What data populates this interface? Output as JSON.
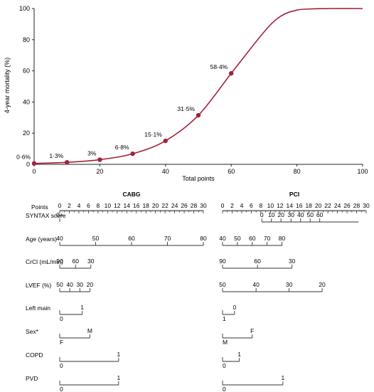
{
  "chart_data": {
    "type": "line",
    "xlabel": "Total points",
    "ylabel": "4-year mortality (%)",
    "xlim": [
      0,
      100
    ],
    "ylim": [
      0,
      100
    ],
    "x_ticks": [
      "0",
      "20",
      "40",
      "60",
      "80",
      "100"
    ],
    "y_ticks": [
      "0",
      "20",
      "40",
      "60",
      "80",
      "100"
    ],
    "series": [
      {
        "color": "#a3213a",
        "curve": {
          "x": [
            0,
            10,
            20,
            30,
            40,
            50,
            60,
            70,
            75,
            80,
            85,
            90,
            100
          ],
          "y": [
            0.6,
            1.3,
            3,
            6.8,
            15.1,
            31.5,
            58.4,
            85,
            95,
            99,
            99.8,
            100,
            100
          ]
        },
        "points": [
          {
            "x": 0,
            "y": 0.6,
            "label": "0·6%"
          },
          {
            "x": 10,
            "y": 1.3,
            "label": "1·3%"
          },
          {
            "x": 20,
            "y": 3,
            "label": "3%"
          },
          {
            "x": 30,
            "y": 6.8,
            "label": "6·8%"
          },
          {
            "x": 40,
            "y": 15.1,
            "label": "15·1%"
          },
          {
            "x": 50,
            "y": 31.5,
            "label": "31·5%"
          },
          {
            "x": 60,
            "y": 58.4,
            "label": "58·4%"
          }
        ]
      }
    ]
  },
  "nomogram": {
    "points_label": "Points",
    "groups": [
      {
        "title": "CABG",
        "ticks": [
          "0",
          "2",
          "4",
          "6",
          "8",
          "10",
          "12",
          "14",
          "16",
          "18",
          "20",
          "22",
          "24",
          "26",
          "28",
          "30"
        ]
      },
      {
        "title": "PCI",
        "ticks": [
          "0",
          "2",
          "4",
          "6",
          "8",
          "10",
          "12",
          "14",
          "16",
          "18",
          "20",
          "22",
          "24",
          "26",
          "28",
          "30"
        ]
      }
    ],
    "rows": [
      {
        "label": "SYNTAX score",
        "cabg": {
          "start": 0,
          "end": 0,
          "ticks": [
            {
              "p": 0,
              "t": "0+"
            }
          ]
        },
        "pci": {
          "start": 8.2,
          "end": 28.4,
          "ticks": [
            {
              "p": 8.2,
              "t": "0"
            },
            {
              "p": 10.2,
              "t": "10"
            },
            {
              "p": 12.2,
              "t": "20"
            },
            {
              "p": 14.3,
              "t": "30"
            },
            {
              "p": 16.3,
              "t": "40"
            },
            {
              "p": 18.3,
              "t": "50"
            },
            {
              "p": 20.3,
              "t": "60"
            }
          ]
        }
      },
      {
        "label": "Age (years)",
        "cabg": {
          "start": 0,
          "end": 30,
          "ticks": [
            {
              "p": 0,
              "t": "40"
            },
            {
              "p": 7.5,
              "t": "50"
            },
            {
              "p": 15,
              "t": "60"
            },
            {
              "p": 22.5,
              "t": "70"
            },
            {
              "p": 30,
              "t": "80"
            }
          ]
        },
        "pci": {
          "start": 0,
          "end": 12.5,
          "ticks": [
            {
              "p": 0,
              "t": "40"
            },
            {
              "p": 3.1,
              "t": "50"
            },
            {
              "p": 6.2,
              "t": "60"
            },
            {
              "p": 9.3,
              "t": "70"
            },
            {
              "p": 12.4,
              "t": "80"
            }
          ]
        }
      },
      {
        "label": "CrCl (mL/min)",
        "cabg": {
          "start": 0,
          "end": 6.5,
          "ticks": [
            {
              "p": 0,
              "t": "90"
            },
            {
              "p": 3.3,
              "t": "60"
            },
            {
              "p": 6.5,
              "t": "30"
            }
          ]
        },
        "pci": {
          "start": 0,
          "end": 14.5,
          "ticks": [
            {
              "p": 0,
              "t": "90"
            },
            {
              "p": 7.3,
              "t": "60"
            },
            {
              "p": 14.5,
              "t": "30"
            }
          ]
        }
      },
      {
        "label": "LVEF (%)",
        "cabg": {
          "start": 0,
          "end": 6.3,
          "ticks": [
            {
              "p": 0,
              "t": "50"
            },
            {
              "p": 2.1,
              "t": "40"
            },
            {
              "p": 4.2,
              "t": "30"
            },
            {
              "p": 6.3,
              "t": "20"
            }
          ]
        },
        "pci": {
          "start": 0,
          "end": 20.8,
          "ticks": [
            {
              "p": 0,
              "t": "50"
            },
            {
              "p": 7,
              "t": "40"
            },
            {
              "p": 13.9,
              "t": "30"
            },
            {
              "p": 20.8,
              "t": "20"
            }
          ]
        }
      },
      {
        "label": "Left main",
        "cabg": {
          "start": 0,
          "end": 4.7,
          "ticks": [
            {
              "p": 0,
              "t": "0",
              "below": true
            },
            {
              "p": 4.7,
              "t": "1"
            }
          ]
        },
        "pci": {
          "start": 0,
          "end": 2.5,
          "ticks": [
            {
              "p": 0,
              "t": "1",
              "below": true
            },
            {
              "p": 2.5,
              "t": "0"
            }
          ]
        }
      },
      {
        "label": "Sex*",
        "cabg": {
          "start": 0,
          "end": 6.3,
          "ticks": [
            {
              "p": 0,
              "t": "F",
              "below": true
            },
            {
              "p": 6.3,
              "t": "M"
            }
          ]
        },
        "pci": {
          "start": 0,
          "end": 6.2,
          "ticks": [
            {
              "p": 0,
              "t": "M",
              "below": true
            },
            {
              "p": 6.2,
              "t": "F"
            }
          ]
        }
      },
      {
        "label": "COPD",
        "cabg": {
          "start": 0,
          "end": 12.3,
          "ticks": [
            {
              "p": 0,
              "t": "0",
              "below": true
            },
            {
              "p": 12.3,
              "t": "1"
            }
          ]
        },
        "pci": {
          "start": 0,
          "end": 3.5,
          "ticks": [
            {
              "p": 0,
              "t": "0",
              "below": true
            },
            {
              "p": 3.5,
              "t": "1"
            }
          ]
        }
      },
      {
        "label": "PVD",
        "cabg": {
          "start": 0,
          "end": 12.3,
          "ticks": [
            {
              "p": 0,
              "t": "0",
              "below": true
            },
            {
              "p": 12.3,
              "t": "1"
            }
          ]
        },
        "pci": {
          "start": 0,
          "end": 12.6,
          "ticks": [
            {
              "p": 0,
              "t": "0",
              "below": true
            },
            {
              "p": 12.6,
              "t": "1"
            }
          ]
        }
      }
    ]
  }
}
